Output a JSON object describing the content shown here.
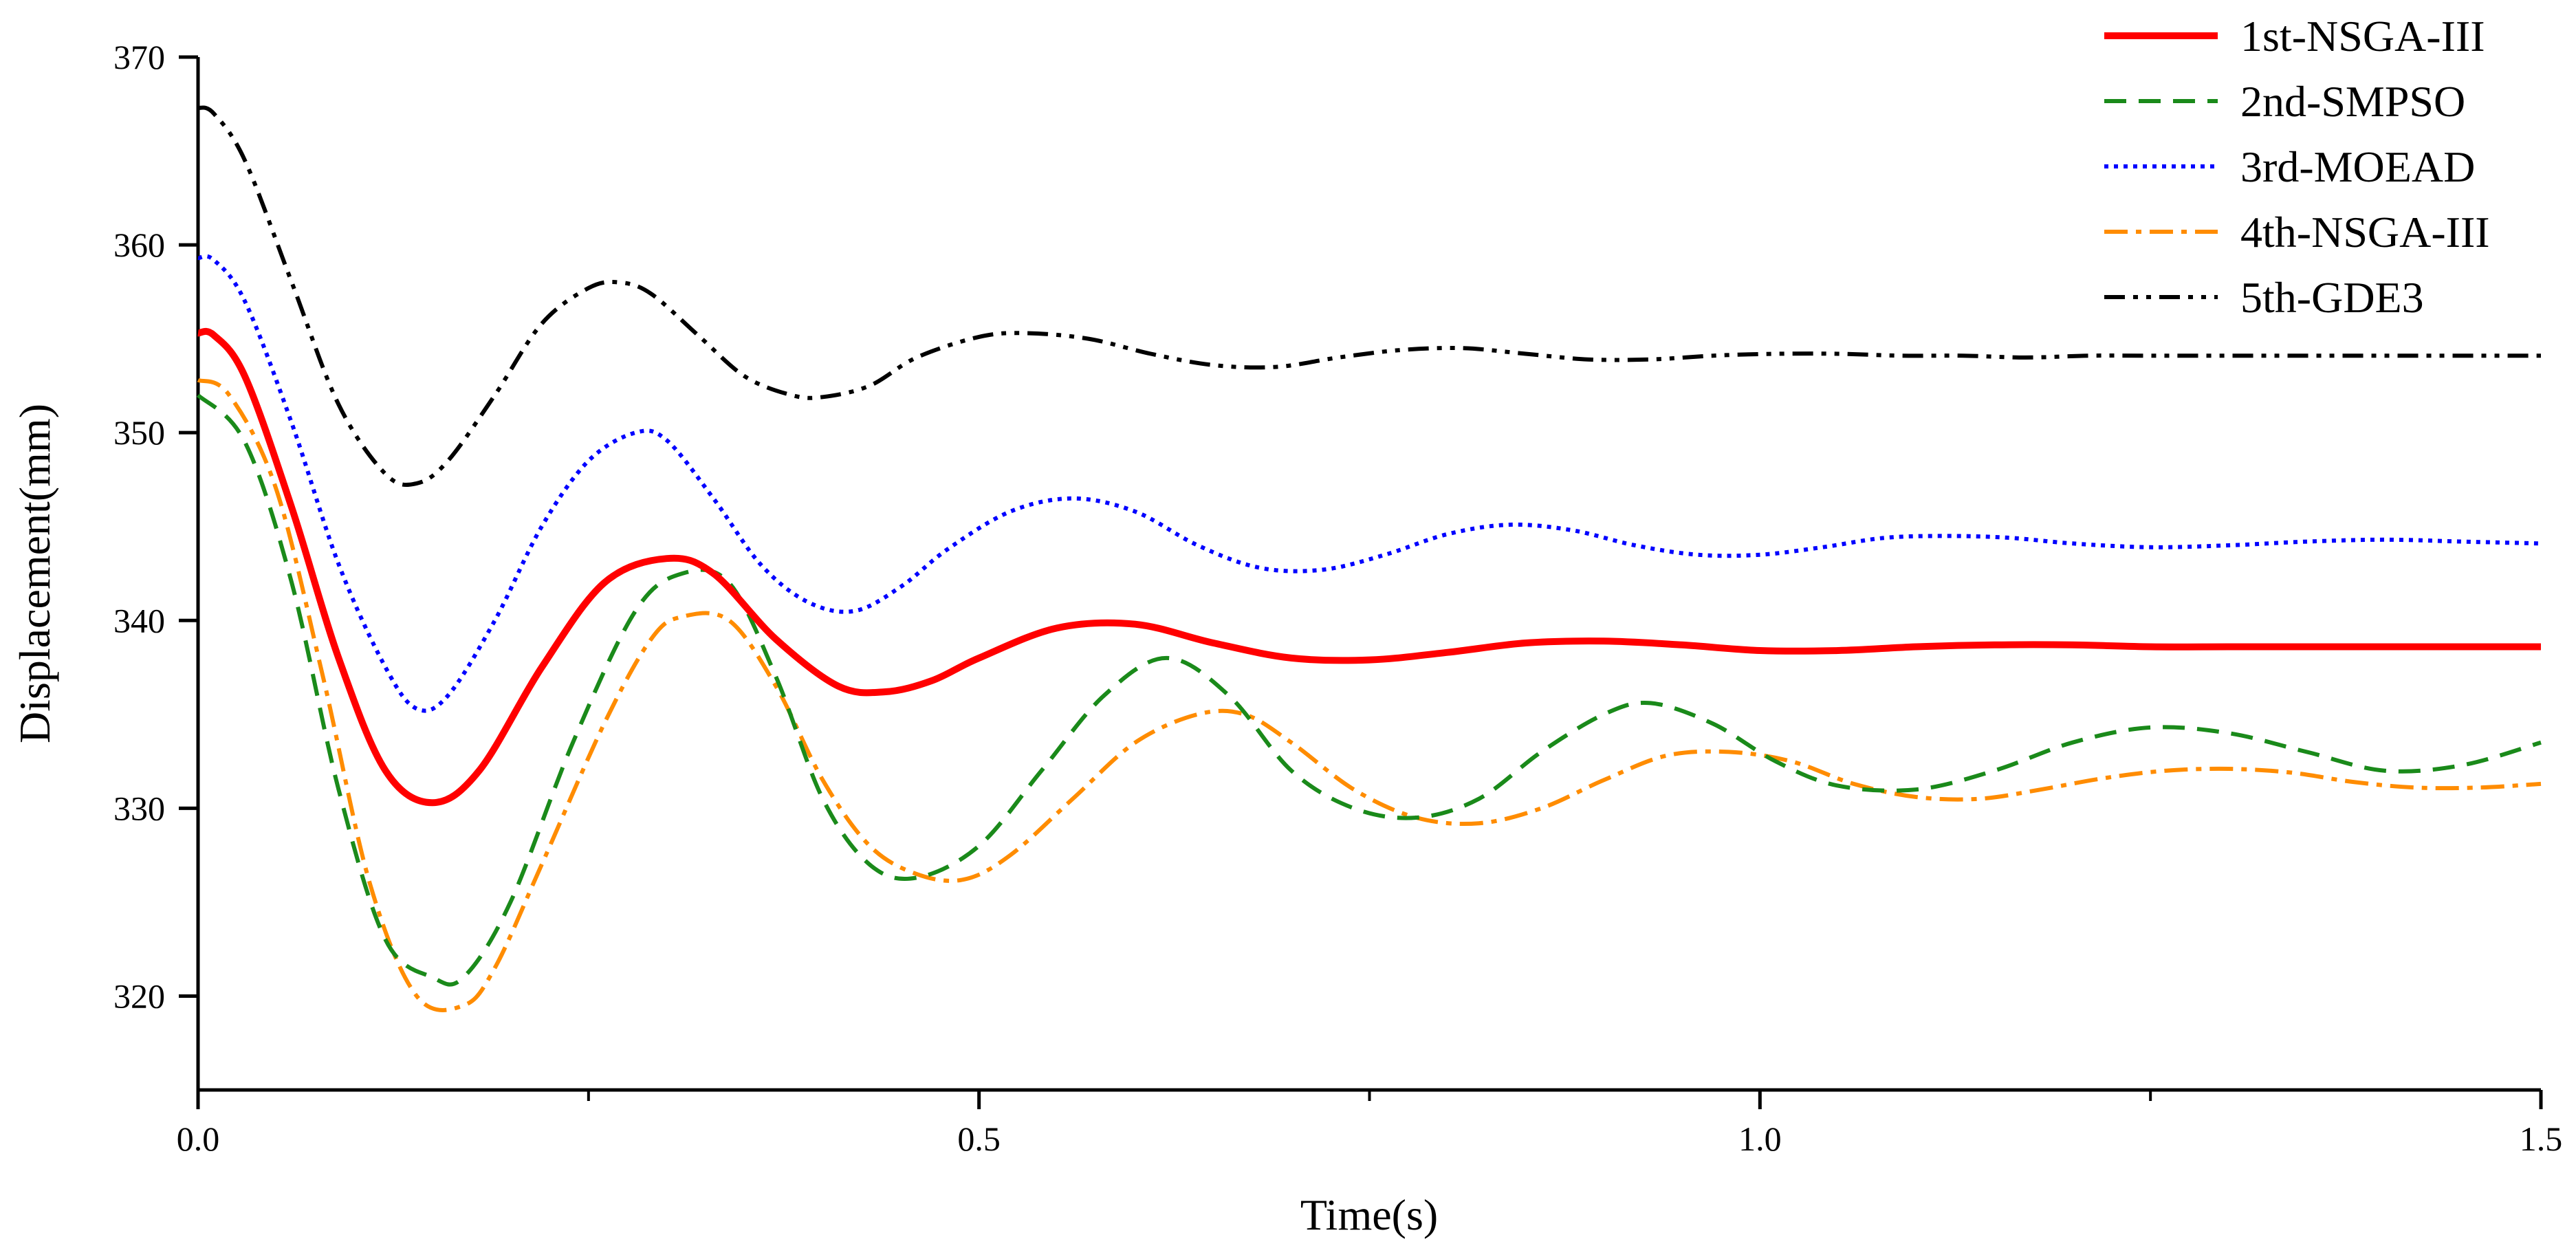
{
  "chart_data": {
    "type": "line",
    "xlabel": "Time(s)",
    "ylabel": "Displacement(mm)",
    "xlim": [
      0,
      1.5
    ],
    "ylim": [
      315,
      370
    ],
    "grid": false,
    "legend_position": "top-right",
    "x_ticks": [
      0.0,
      0.5,
      1.0,
      1.5
    ],
    "x_tick_labels": [
      "0.0",
      "0.5",
      "1.0",
      "1.5"
    ],
    "x_minor_ticks": [
      0.25,
      0.75,
      1.25
    ],
    "y_ticks": [
      320,
      330,
      340,
      350,
      360,
      370
    ],
    "y_tick_labels": [
      "320",
      "330",
      "340",
      "350",
      "360",
      "370"
    ],
    "series": [
      {
        "name": "1st-NSGA-III",
        "color": "#ff0000",
        "style": "solid",
        "x": [
          0.0,
          0.01,
          0.03,
          0.06,
          0.09,
          0.12,
          0.15,
          0.18,
          0.22,
          0.26,
          0.3,
          0.33,
          0.37,
          0.41,
          0.44,
          0.47,
          0.5,
          0.55,
          0.6,
          0.65,
          0.7,
          0.75,
          0.8,
          0.85,
          0.9,
          0.95,
          1.0,
          1.05,
          1.1,
          1.15,
          1.2,
          1.25,
          1.3,
          1.35,
          1.4,
          1.45,
          1.5
        ],
        "y": [
          355.3,
          355.2,
          353.0,
          346.0,
          338.0,
          332.0,
          330.3,
          332.0,
          337.5,
          342.0,
          343.3,
          342.5,
          339.0,
          336.5,
          336.2,
          336.8,
          338.0,
          339.6,
          339.8,
          338.8,
          338.0,
          337.9,
          338.3,
          338.8,
          338.9,
          338.7,
          338.4,
          338.4,
          338.6,
          338.7,
          338.7,
          338.6,
          338.6,
          338.6,
          338.6,
          338.6,
          338.6
        ]
      },
      {
        "name": "2nd-SMPSO",
        "color": "#1a8a1a",
        "style": "dashed",
        "x": [
          0.0,
          0.03,
          0.06,
          0.09,
          0.12,
          0.15,
          0.17,
          0.2,
          0.24,
          0.28,
          0.31,
          0.34,
          0.37,
          0.4,
          0.43,
          0.46,
          0.5,
          0.54,
          0.58,
          0.62,
          0.66,
          0.7,
          0.74,
          0.78,
          0.82,
          0.86,
          0.9,
          0.93,
          0.97,
          1.01,
          1.05,
          1.1,
          1.15,
          1.2,
          1.25,
          1.3,
          1.35,
          1.4,
          1.45,
          1.5
        ],
        "y": [
          352.0,
          349.5,
          342.0,
          331.0,
          323.0,
          321.0,
          321.0,
          325.0,
          333.5,
          340.5,
          342.5,
          342.0,
          337.0,
          330.5,
          327.0,
          326.3,
          328.0,
          332.0,
          336.0,
          338.0,
          336.0,
          332.0,
          330.0,
          329.5,
          330.5,
          333.0,
          335.0,
          335.6,
          334.5,
          332.5,
          331.2,
          331.0,
          332.0,
          333.5,
          334.3,
          334.0,
          333.0,
          332.0,
          332.3,
          333.5
        ]
      },
      {
        "name": "3rd-MOEAD",
        "color": "#0000ff",
        "style": "dotted",
        "x": [
          0.0,
          0.01,
          0.03,
          0.06,
          0.09,
          0.12,
          0.14,
          0.16,
          0.19,
          0.22,
          0.25,
          0.28,
          0.3,
          0.33,
          0.36,
          0.39,
          0.42,
          0.45,
          0.48,
          0.52,
          0.56,
          0.6,
          0.64,
          0.68,
          0.72,
          0.76,
          0.8,
          0.84,
          0.88,
          0.92,
          0.96,
          1.0,
          1.04,
          1.08,
          1.12,
          1.16,
          1.2,
          1.25,
          1.3,
          1.35,
          1.4,
          1.45,
          1.5
        ],
        "y": [
          359.3,
          359.2,
          357.0,
          350.5,
          343.0,
          337.5,
          335.3,
          336.0,
          340.0,
          345.0,
          348.5,
          350.0,
          349.6,
          346.5,
          343.0,
          341.0,
          340.5,
          341.8,
          343.8,
          345.8,
          346.5,
          345.8,
          344.0,
          342.8,
          342.7,
          343.5,
          344.6,
          345.1,
          344.8,
          344.0,
          343.5,
          343.5,
          343.9,
          344.4,
          344.5,
          344.4,
          344.1,
          343.9,
          344.0,
          344.2,
          344.3,
          344.2,
          344.1
        ]
      },
      {
        "name": "4th-NSGA-III",
        "color": "#ff8c00",
        "style": "dashdot",
        "x": [
          0.0,
          0.02,
          0.05,
          0.08,
          0.11,
          0.14,
          0.17,
          0.19,
          0.22,
          0.26,
          0.29,
          0.31,
          0.34,
          0.37,
          0.4,
          0.43,
          0.46,
          0.49,
          0.52,
          0.56,
          0.6,
          0.64,
          0.67,
          0.7,
          0.74,
          0.78,
          0.82,
          0.86,
          0.9,
          0.94,
          0.98,
          1.02,
          1.06,
          1.1,
          1.14,
          1.18,
          1.22,
          1.26,
          1.3,
          1.34,
          1.38,
          1.42,
          1.46,
          1.5
        ],
        "y": [
          352.8,
          352.0,
          347.0,
          337.0,
          326.0,
          320.0,
          319.5,
          321.5,
          327.0,
          334.5,
          339.0,
          340.2,
          340.0,
          336.5,
          331.5,
          328.0,
          326.5,
          326.2,
          327.5,
          330.5,
          333.5,
          335.0,
          335.0,
          333.5,
          331.0,
          329.5,
          329.2,
          330.0,
          331.5,
          332.8,
          333.0,
          332.5,
          331.3,
          330.6,
          330.5,
          331.0,
          331.6,
          332.0,
          332.1,
          331.9,
          331.4,
          331.1,
          331.1,
          331.3
        ]
      },
      {
        "name": "5th-GDE3",
        "color": "#000000",
        "style": "dashdotdot",
        "x": [
          0.0,
          0.01,
          0.03,
          0.06,
          0.09,
          0.12,
          0.14,
          0.16,
          0.19,
          0.22,
          0.25,
          0.27,
          0.29,
          0.32,
          0.35,
          0.38,
          0.4,
          0.43,
          0.46,
          0.5,
          0.53,
          0.57,
          0.61,
          0.65,
          0.69,
          0.73,
          0.77,
          0.81,
          0.85,
          0.89,
          0.93,
          0.97,
          1.01,
          1.05,
          1.09,
          1.13,
          1.17,
          1.21,
          1.25,
          1.3,
          1.35,
          1.4,
          1.45,
          1.5
        ],
        "y": [
          367.3,
          367.0,
          364.5,
          358.0,
          351.5,
          347.8,
          347.3,
          348.5,
          352.0,
          355.8,
          357.7,
          358.0,
          357.4,
          355.2,
          353.0,
          352.0,
          351.9,
          352.5,
          354.0,
          355.1,
          355.3,
          355.0,
          354.2,
          353.6,
          353.5,
          354.0,
          354.4,
          354.5,
          354.2,
          353.9,
          353.9,
          354.1,
          354.2,
          354.2,
          354.1,
          354.1,
          354.0,
          354.1,
          354.1,
          354.1,
          354.1,
          354.1,
          354.1,
          354.1
        ]
      }
    ]
  }
}
